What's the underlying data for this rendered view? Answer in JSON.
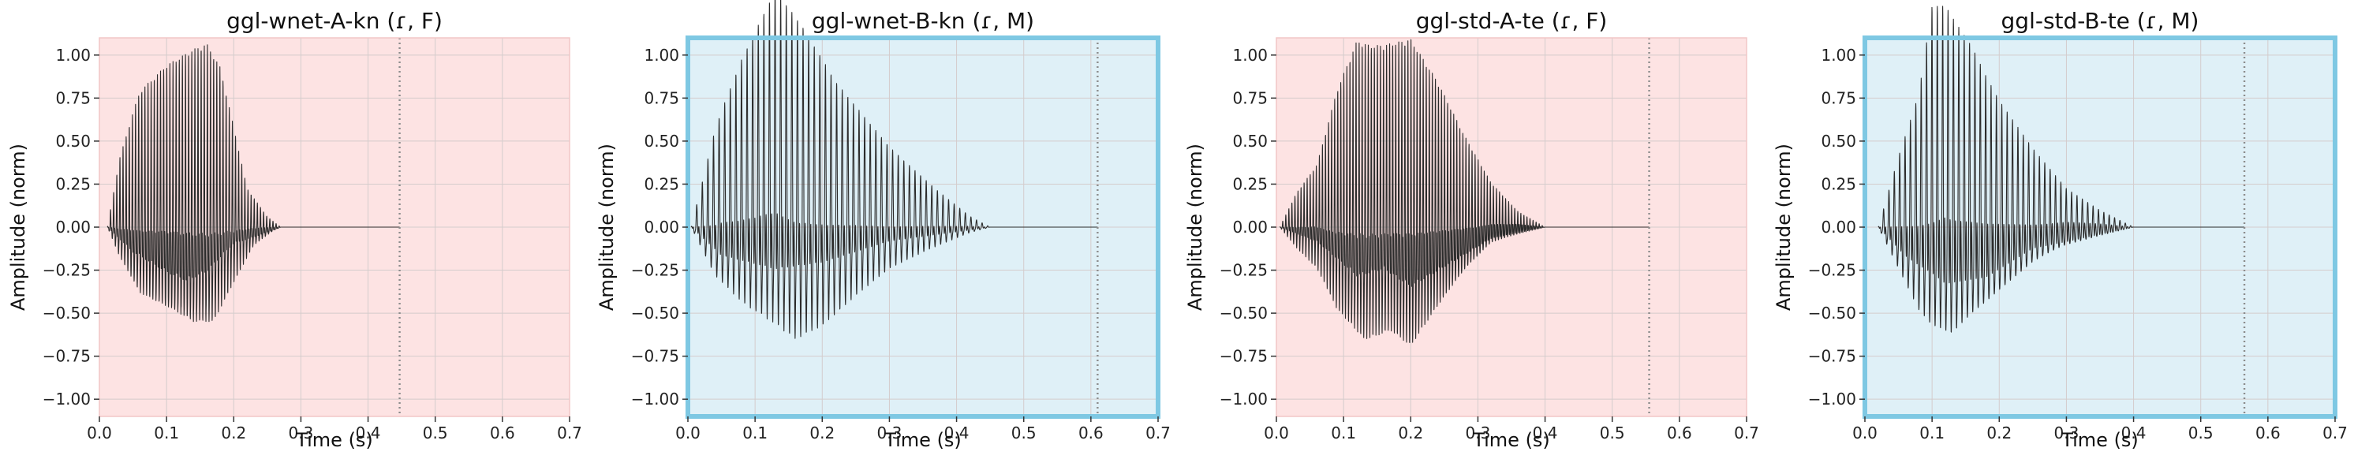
{
  "chart_data": [
    {
      "type": "line",
      "title": "ggl-wnet-A-kn (ɾ, F)",
      "xlabel": "Time (s)",
      "ylabel": "Amplitude (norm)",
      "xlim": [
        0,
        0.7
      ],
      "ylim": [
        -1.1,
        1.1
      ],
      "xticks": [
        "0.0",
        "0.1",
        "0.2",
        "0.3",
        "0.4",
        "0.5",
        "0.6",
        "0.7"
      ],
      "yticks": [
        "1.00",
        "0.75",
        "0.50",
        "0.25",
        "0.00",
        "−0.25",
        "−0.50",
        "−0.75",
        "−1.00"
      ],
      "grid": true,
      "background": "#fde3e3",
      "highlight_border": false,
      "end_marker_x": 0.447,
      "signal_end": 0.447,
      "waveform": {
        "onset": 0.012,
        "f0_hz": 215,
        "upper_envelope": [
          [
            0.012,
            0.0
          ],
          [
            0.03,
            0.36
          ],
          [
            0.06,
            0.7
          ],
          [
            0.1,
            0.82
          ],
          [
            0.14,
            0.95
          ],
          [
            0.16,
            1.0
          ],
          [
            0.18,
            0.88
          ],
          [
            0.2,
            0.55
          ],
          [
            0.22,
            0.2
          ],
          [
            0.25,
            0.05
          ],
          [
            0.27,
            0.0
          ]
        ],
        "lower_envelope": [
          [
            0.012,
            0.0
          ],
          [
            0.03,
            -0.2
          ],
          [
            0.06,
            -0.45
          ],
          [
            0.1,
            -0.55
          ],
          [
            0.14,
            -0.62
          ],
          [
            0.17,
            -0.6
          ],
          [
            0.2,
            -0.35
          ],
          [
            0.23,
            -0.12
          ],
          [
            0.26,
            -0.02
          ],
          [
            0.27,
            0.0
          ]
        ],
        "inner_upper_envelope": [
          [
            0.012,
            0.0
          ],
          [
            0.05,
            0.12
          ],
          [
            0.1,
            0.18
          ],
          [
            0.16,
            0.1
          ],
          [
            0.2,
            0.05
          ],
          [
            0.27,
            0.0
          ]
        ],
        "inner_lower_envelope": [
          [
            0.012,
            0.0
          ],
          [
            0.05,
            -0.18
          ],
          [
            0.1,
            -0.32
          ],
          [
            0.13,
            -0.38
          ],
          [
            0.16,
            -0.32
          ],
          [
            0.2,
            -0.12
          ],
          [
            0.27,
            0.0
          ]
        ]
      }
    },
    {
      "type": "line",
      "title": "ggl-wnet-B-kn (ɾ, M)",
      "xlabel": "Time (s)",
      "ylabel": "Amplitude (norm)",
      "xlim": [
        0,
        0.7
      ],
      "ylim": [
        -1.1,
        1.1
      ],
      "xticks": [
        "0.0",
        "0.1",
        "0.2",
        "0.3",
        "0.4",
        "0.5",
        "0.6",
        "0.7"
      ],
      "yticks": [
        "1.00",
        "0.75",
        "0.50",
        "0.25",
        "0.00",
        "−0.25",
        "−0.50",
        "−0.75",
        "−1.00"
      ],
      "grid": true,
      "background": "#dff0f7",
      "highlight_border": true,
      "border_color": "#7ec8e3",
      "end_marker_x": 0.61,
      "signal_end": 0.61,
      "waveform": {
        "onset": 0.005,
        "f0_hz": 120,
        "upper_envelope": [
          [
            0.005,
            0.0
          ],
          [
            0.04,
            0.42
          ],
          [
            0.08,
            0.72
          ],
          [
            0.13,
            1.0
          ],
          [
            0.17,
            0.85
          ],
          [
            0.22,
            0.6
          ],
          [
            0.27,
            0.45
          ],
          [
            0.32,
            0.3
          ],
          [
            0.37,
            0.16
          ],
          [
            0.42,
            0.04
          ],
          [
            0.45,
            0.0
          ]
        ],
        "lower_envelope": [
          [
            0.005,
            0.0
          ],
          [
            0.04,
            -0.35
          ],
          [
            0.08,
            -0.55
          ],
          [
            0.12,
            -0.68
          ],
          [
            0.16,
            -0.82
          ],
          [
            0.2,
            -0.72
          ],
          [
            0.25,
            -0.5
          ],
          [
            0.3,
            -0.3
          ],
          [
            0.36,
            -0.16
          ],
          [
            0.42,
            -0.04
          ],
          [
            0.45,
            0.0
          ]
        ],
        "inner_upper_envelope": [
          [
            0.005,
            0.0
          ],
          [
            0.05,
            0.25
          ],
          [
            0.13,
            0.52
          ],
          [
            0.2,
            0.38
          ],
          [
            0.3,
            0.15
          ],
          [
            0.45,
            0.0
          ]
        ],
        "inner_lower_envelope": [
          [
            0.005,
            0.0
          ],
          [
            0.05,
            -0.2
          ],
          [
            0.13,
            -0.3
          ],
          [
            0.2,
            -0.25
          ],
          [
            0.3,
            -0.1
          ],
          [
            0.45,
            0.0
          ]
        ]
      }
    },
    {
      "type": "line",
      "title": "ggl-std-A-te (ɾ, F)",
      "xlabel": "Time (s)",
      "ylabel": "Amplitude (norm)",
      "xlim": [
        0,
        0.7
      ],
      "ylim": [
        -1.1,
        1.1
      ],
      "xticks": [
        "0.0",
        "0.1",
        "0.2",
        "0.3",
        "0.4",
        "0.5",
        "0.6",
        "0.7"
      ],
      "yticks": [
        "1.00",
        "0.75",
        "0.50",
        "0.25",
        "0.00",
        "−0.25",
        "−0.50",
        "−0.75",
        "−1.00"
      ],
      "grid": true,
      "background": "#fde3e3",
      "highlight_border": false,
      "end_marker_x": 0.555,
      "signal_end": 0.555,
      "waveform": {
        "onset": 0.005,
        "f0_hz": 220,
        "upper_envelope": [
          [
            0.005,
            0.0
          ],
          [
            0.03,
            0.15
          ],
          [
            0.06,
            0.25
          ],
          [
            0.09,
            0.7
          ],
          [
            0.12,
            1.0
          ],
          [
            0.16,
            0.95
          ],
          [
            0.2,
            0.92
          ],
          [
            0.24,
            0.72
          ],
          [
            0.28,
            0.45
          ],
          [
            0.32,
            0.2
          ],
          [
            0.36,
            0.06
          ],
          [
            0.4,
            0.0
          ]
        ],
        "lower_envelope": [
          [
            0.005,
            0.0
          ],
          [
            0.03,
            -0.15
          ],
          [
            0.06,
            -0.3
          ],
          [
            0.09,
            -0.55
          ],
          [
            0.13,
            -0.72
          ],
          [
            0.17,
            -0.7
          ],
          [
            0.2,
            -0.82
          ],
          [
            0.24,
            -0.55
          ],
          [
            0.28,
            -0.3
          ],
          [
            0.32,
            -0.1
          ],
          [
            0.36,
            -0.03
          ],
          [
            0.4,
            0.0
          ]
        ],
        "inner_upper_envelope": [
          [
            0.005,
            0.0
          ],
          [
            0.06,
            0.15
          ],
          [
            0.14,
            0.12
          ],
          [
            0.2,
            0.25
          ],
          [
            0.28,
            0.12
          ],
          [
            0.4,
            0.0
          ]
        ],
        "inner_lower_envelope": [
          [
            0.005,
            0.0
          ],
          [
            0.06,
            -0.1
          ],
          [
            0.12,
            -0.35
          ],
          [
            0.16,
            -0.3
          ],
          [
            0.2,
            -0.42
          ],
          [
            0.25,
            -0.28
          ],
          [
            0.32,
            -0.08
          ],
          [
            0.4,
            0.0
          ]
        ]
      }
    },
    {
      "type": "line",
      "title": "ggl-std-B-te (ɾ, M)",
      "xlabel": "Time (s)",
      "ylabel": "Amplitude (norm)",
      "xlim": [
        0,
        0.7
      ],
      "ylim": [
        -1.1,
        1.1
      ],
      "xticks": [
        "0.0",
        "0.1",
        "0.2",
        "0.3",
        "0.4",
        "0.5",
        "0.6",
        "0.7"
      ],
      "yticks": [
        "1.00",
        "0.75",
        "0.50",
        "0.25",
        "0.00",
        "−0.25",
        "−0.50",
        "−0.75",
        "−1.00"
      ],
      "grid": true,
      "background": "#dff0f7",
      "highlight_border": true,
      "border_color": "#7ec8e3",
      "end_marker_x": 0.565,
      "signal_end": 0.565,
      "waveform": {
        "onset": 0.02,
        "f0_hz": 125,
        "upper_envelope": [
          [
            0.02,
            0.0
          ],
          [
            0.05,
            0.3
          ],
          [
            0.08,
            0.55
          ],
          [
            0.1,
            1.0
          ],
          [
            0.13,
            0.88
          ],
          [
            0.16,
            0.78
          ],
          [
            0.2,
            0.55
          ],
          [
            0.25,
            0.35
          ],
          [
            0.3,
            0.15
          ],
          [
            0.35,
            0.06
          ],
          [
            0.4,
            0.0
          ]
        ],
        "lower_envelope": [
          [
            0.02,
            0.0
          ],
          [
            0.05,
            -0.3
          ],
          [
            0.08,
            -0.6
          ],
          [
            0.1,
            -0.72
          ],
          [
            0.13,
            -0.78
          ],
          [
            0.16,
            -0.62
          ],
          [
            0.2,
            -0.45
          ],
          [
            0.25,
            -0.25
          ],
          [
            0.3,
            -0.1
          ],
          [
            0.35,
            -0.04
          ],
          [
            0.4,
            0.0
          ]
        ],
        "inner_upper_envelope": [
          [
            0.02,
            0.0
          ],
          [
            0.06,
            0.2
          ],
          [
            0.12,
            0.5
          ],
          [
            0.18,
            0.3
          ],
          [
            0.25,
            0.15
          ],
          [
            0.4,
            0.0
          ]
        ],
        "inner_lower_envelope": [
          [
            0.02,
            0.0
          ],
          [
            0.06,
            -0.2
          ],
          [
            0.12,
            -0.4
          ],
          [
            0.18,
            -0.35
          ],
          [
            0.25,
            -0.15
          ],
          [
            0.4,
            0.0
          ]
        ]
      }
    }
  ]
}
